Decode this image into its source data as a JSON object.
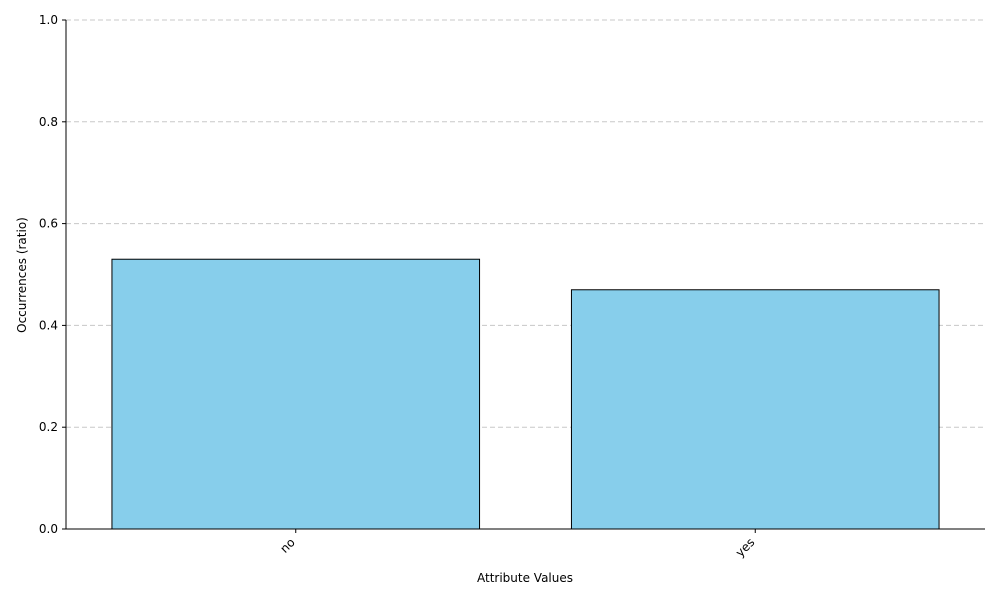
{
  "chart_data": {
    "type": "bar",
    "title": "",
    "xlabel": "Attribute Values",
    "ylabel": "Occurrences (ratio)",
    "categories": [
      "no",
      "yes"
    ],
    "values": [
      0.53,
      0.47
    ],
    "ylim": [
      0,
      1.0
    ],
    "yticks": [
      "0.0",
      "0.2",
      "0.4",
      "0.6",
      "0.8",
      "1.0"
    ],
    "grid": "y-dashed",
    "legend": "none",
    "bar_color": "#87CEEB",
    "bar_edge_color": "#000000",
    "grid_color": "#c8c8c8"
  }
}
